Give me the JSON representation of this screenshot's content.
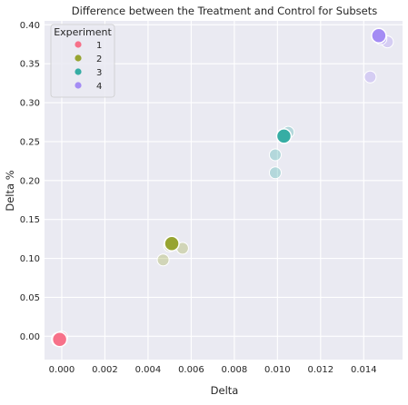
{
  "chart_data": {
    "type": "scatter",
    "title": "Difference between the Treatment and Control for Subsets",
    "xlabel": "Delta",
    "ylabel": "Delta %",
    "xlim": [
      -0.0008,
      0.0158
    ],
    "ylim": [
      -0.03,
      0.405
    ],
    "x_ticks": [
      "0.000",
      "0.002",
      "0.004",
      "0.006",
      "0.008",
      "0.010",
      "0.012",
      "0.014"
    ],
    "x_tick_values": [
      0.0,
      0.002,
      0.004,
      0.006,
      0.008,
      0.01,
      0.012,
      0.014
    ],
    "y_ticks": [
      "0.00",
      "0.05",
      "0.10",
      "0.15",
      "0.20",
      "0.25",
      "0.30",
      "0.35",
      "0.40"
    ],
    "y_tick_values": [
      0.0,
      0.05,
      0.1,
      0.15,
      0.2,
      0.25,
      0.3,
      0.35,
      0.4
    ],
    "grid": true,
    "background": "#eaeaf2",
    "legend": {
      "title": "Experiment",
      "placement": "top-left"
    },
    "series": [
      {
        "name": "1",
        "color": "#f77189",
        "points": [
          {
            "x": -0.0002,
            "y": -0.005,
            "kind": "subset"
          },
          {
            "x": 0.0,
            "y": -0.001,
            "kind": "subset"
          },
          {
            "x": -0.0002,
            "y": -0.003,
            "kind": "subset"
          },
          {
            "x": -0.0001,
            "y": -0.004,
            "kind": "overall"
          }
        ]
      },
      {
        "name": "2",
        "color": "#97a431",
        "points": [
          {
            "x": 0.0047,
            "y": 0.098,
            "kind": "subset"
          },
          {
            "x": 0.0056,
            "y": 0.113,
            "kind": "subset"
          },
          {
            "x": 0.005,
            "y": 0.116,
            "kind": "subset"
          },
          {
            "x": 0.0051,
            "y": 0.119,
            "kind": "overall"
          }
        ]
      },
      {
        "name": "3",
        "color": "#36ada4",
        "points": [
          {
            "x": 0.0099,
            "y": 0.21,
            "kind": "subset"
          },
          {
            "x": 0.0099,
            "y": 0.233,
            "kind": "subset"
          },
          {
            "x": 0.0105,
            "y": 0.262,
            "kind": "subset"
          },
          {
            "x": 0.0103,
            "y": 0.257,
            "kind": "overall"
          }
        ]
      },
      {
        "name": "4",
        "color": "#a48cf4",
        "points": [
          {
            "x": 0.0143,
            "y": 0.333,
            "kind": "subset"
          },
          {
            "x": 0.0151,
            "y": 0.378,
            "kind": "subset"
          },
          {
            "x": 0.0148,
            "y": 0.382,
            "kind": "subset"
          },
          {
            "x": 0.0147,
            "y": 0.386,
            "kind": "overall"
          }
        ]
      }
    ]
  }
}
